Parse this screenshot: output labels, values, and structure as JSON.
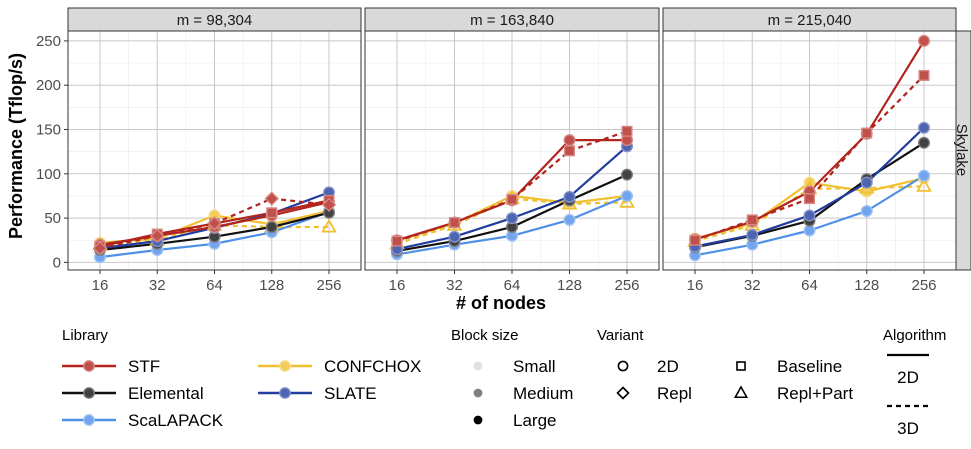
{
  "chart_data": {
    "type": "line",
    "ylabel": "Performance (Tflop/s)",
    "xlabel": "# of nodes",
    "row_strip": "Skylake",
    "x_ticks": [
      "16",
      "32",
      "64",
      "128",
      "256"
    ],
    "y_ticks": [
      "0",
      "50",
      "100",
      "150",
      "200",
      "250"
    ],
    "ylim": [
      -8,
      262
    ],
    "x_scale": "log2",
    "grid": true,
    "colors": {
      "STF": "#b2241e",
      "Elemental": "#111111",
      "ScaLAPACK": "#4f8fe8",
      "CONFCHOX": "#f0c030",
      "SLATE": "#213d9e"
    },
    "panels": [
      {
        "title": "m = 98,304",
        "series": [
          {
            "library": "CONFCHOX",
            "variant": "2D",
            "algorithm": "2D",
            "x": [
              16,
              32,
              64,
              128,
              256
            ],
            "y": [
              22,
              27,
              53,
              43,
              58
            ]
          },
          {
            "library": "CONFCHOX",
            "variant": "Repl+Part",
            "algorithm": "3D",
            "x": [
              16,
              32,
              64,
              128,
              256
            ],
            "y": [
              20,
              25,
              42,
              40,
              40
            ]
          },
          {
            "library": "ScaLAPACK",
            "variant": "2D",
            "algorithm": "2D",
            "x": [
              16,
              32,
              64,
              128,
              256
            ],
            "y": [
              6,
              14,
              21,
              34,
              57
            ]
          },
          {
            "library": "Elemental",
            "variant": "2D",
            "algorithm": "2D",
            "x": [
              16,
              32,
              64,
              128,
              256
            ],
            "y": [
              14,
              21,
              29,
              40,
              56
            ]
          },
          {
            "library": "SLATE",
            "variant": "2D",
            "algorithm": "2D",
            "x": [
              16,
              32,
              64,
              128,
              256
            ],
            "y": [
              16,
              24,
              39,
              55,
              79
            ]
          },
          {
            "library": "STF",
            "variant": "2D",
            "algorithm": "2D",
            "x": [
              16,
              32,
              64,
              128,
              256
            ],
            "y": [
              20,
              30,
              40,
              53,
              68
            ]
          },
          {
            "library": "STF",
            "variant": "Baseline",
            "algorithm": "2D",
            "x": [
              16,
              32,
              64,
              128,
              256
            ],
            "y": [
              18,
              32,
              44,
              56,
              70
            ]
          },
          {
            "library": "STF",
            "variant": "Repl",
            "algorithm": "3D",
            "x": [
              16,
              32,
              64,
              128,
              256
            ],
            "y": [
              16,
              30,
              44,
              72,
              65
            ]
          }
        ]
      },
      {
        "title": "m = 163,840",
        "series": [
          {
            "library": "CONFCHOX",
            "variant": "2D",
            "algorithm": "2D",
            "x": [
              16,
              32,
              64,
              128,
              256
            ],
            "y": [
              24,
              44,
              75,
              67,
              75
            ]
          },
          {
            "library": "CONFCHOX",
            "variant": "Repl+Part",
            "algorithm": "3D",
            "x": [
              16,
              32,
              64,
              128,
              256
            ],
            "y": [
              21,
              42,
              72,
              66,
              68
            ]
          },
          {
            "library": "ScaLAPACK",
            "variant": "2D",
            "algorithm": "2D",
            "x": [
              16,
              32,
              64,
              128,
              256
            ],
            "y": [
              9,
              20,
              30,
              48,
              75
            ]
          },
          {
            "library": "Elemental",
            "variant": "2D",
            "algorithm": "2D",
            "x": [
              16,
              32,
              64,
              128,
              256
            ],
            "y": [
              13,
              24,
              40,
              70,
              99
            ]
          },
          {
            "library": "SLATE",
            "variant": "2D",
            "algorithm": "2D",
            "x": [
              16,
              32,
              64,
              128,
              256
            ],
            "y": [
              15,
              29,
              50,
              74,
              131
            ]
          },
          {
            "library": "STF",
            "variant": "2D",
            "algorithm": "2D",
            "x": [
              16,
              32,
              64,
              128,
              256
            ],
            "y": [
              25,
              45,
              70,
              138,
              138
            ]
          },
          {
            "library": "STF",
            "variant": "Baseline",
            "algorithm": "3D",
            "x": [
              16,
              32,
              64,
              128,
              256
            ],
            "y": [
              24,
              45,
              71,
              126,
              148
            ]
          }
        ]
      },
      {
        "title": "m = 215,040",
        "series": [
          {
            "library": "CONFCHOX",
            "variant": "2D",
            "algorithm": "2D",
            "x": [
              16,
              32,
              64,
              128,
              256
            ],
            "y": [
              27,
              44,
              90,
              80,
              95
            ]
          },
          {
            "library": "CONFCHOX",
            "variant": "Repl+Part",
            "algorithm": "3D",
            "x": [
              16,
              32,
              64,
              128,
              256
            ],
            "y": [
              24,
              42,
              83,
              84,
              86
            ]
          },
          {
            "library": "ScaLAPACK",
            "variant": "2D",
            "algorithm": "2D",
            "x": [
              16,
              32,
              64,
              128,
              256
            ],
            "y": [
              8,
              20,
              36,
              58,
              98
            ]
          },
          {
            "library": "Elemental",
            "variant": "2D",
            "algorithm": "2D",
            "x": [
              16,
              32,
              64,
              128,
              256
            ],
            "y": [
              17,
              30,
              47,
              94,
              135
            ]
          },
          {
            "library": "SLATE",
            "variant": "2D",
            "algorithm": "2D",
            "x": [
              16,
              32,
              64,
              128,
              256
            ],
            "y": [
              18,
              31,
              53,
              90,
              152
            ]
          },
          {
            "library": "STF",
            "variant": "2D",
            "algorithm": "2D",
            "x": [
              16,
              32,
              64,
              128,
              256
            ],
            "y": [
              26,
              46,
              80,
              145,
              250
            ]
          },
          {
            "library": "STF",
            "variant": "Baseline",
            "algorithm": "3D",
            "x": [
              16,
              32,
              64,
              128,
              256
            ],
            "y": [
              25,
              48,
              72,
              146,
              211
            ]
          }
        ]
      }
    ],
    "legend": {
      "library": {
        "title": "Library",
        "items": [
          {
            "label": "STF",
            "key": "STF"
          },
          {
            "label": "Elemental",
            "key": "Elemental"
          },
          {
            "label": "ScaLAPACK",
            "key": "ScaLAPACK"
          },
          {
            "label": "CONFCHOX",
            "key": "CONFCHOX"
          },
          {
            "label": "SLATE",
            "key": "SLATE"
          }
        ]
      },
      "block_size": {
        "title": "Block size",
        "items": [
          {
            "label": "Small",
            "color": "#e2e2e2"
          },
          {
            "label": "Medium",
            "color": "#808080"
          },
          {
            "label": "Large",
            "color": "#000000"
          }
        ]
      },
      "variant": {
        "title": "Variant",
        "items": [
          {
            "label": "2D",
            "shape": "circle"
          },
          {
            "label": "Repl",
            "shape": "diamond"
          },
          {
            "label": "Baseline",
            "shape": "square"
          },
          {
            "label": "Repl+Part",
            "shape": "triangle"
          }
        ]
      },
      "algorithm": {
        "title": "Algorithm",
        "items": [
          {
            "label": "2D",
            "dash": "solid"
          },
          {
            "label": "3D",
            "dash": "dashed"
          }
        ]
      }
    }
  }
}
